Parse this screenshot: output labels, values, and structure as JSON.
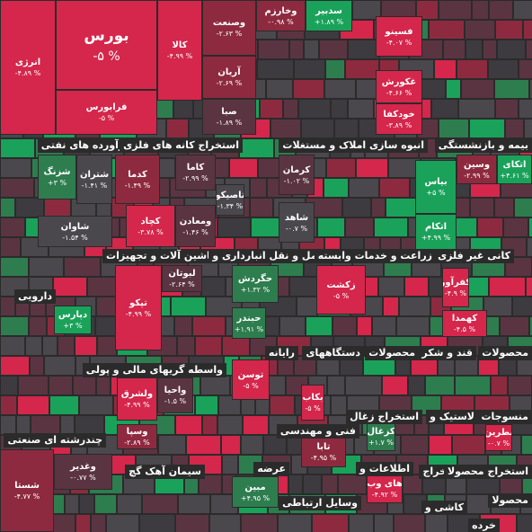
{
  "sectors": [
    "فرآورده های نفتی",
    "استخراج کانه های فلزی",
    "انبوه سازی املاک و مستغلات",
    "بیمه و بازنشستگی",
    "ماشین آلات و تجهیزات",
    "حمل و نقل انبارداری و",
    "زراعت و خدمات وابسته",
    "کانی غیر فلزی",
    "دارویی",
    "رایانه",
    "دستگاههای",
    "محصولات",
    "قند و شکر",
    "محصولات",
    "واسطه گریهای مالی و پولی",
    "فنی و مهندسی",
    "استخراج زغال",
    "لاستیک و",
    "منسوجات",
    "چندرشته ای صنعتی",
    "سیمان آهک گچ",
    "عرضه",
    "اطلاعات و",
    "استخراج",
    "استخراج محصولا",
    "وسایل ارتباطی",
    "کاشی و",
    "محصولا",
    "خرده"
  ],
  "tiles": [
    {
      "name": "بورس",
      "change": "-۵ %"
    },
    {
      "name": "فرابورس",
      "change": "-۵ %"
    },
    {
      "name": "انرژی",
      "change": "-۴.۸۹ %"
    },
    {
      "name": "کالا",
      "change": "-۴.۹۹ %"
    },
    {
      "name": "وصنعت",
      "change": "-۲.۶۳ %"
    },
    {
      "name": "وخارزم",
      "change": "-۰.۹۸ %"
    },
    {
      "name": "سدبیر",
      "change": "+۱.۸۹ %"
    },
    {
      "name": "فسینو",
      "change": "-۴.۰۷ %"
    },
    {
      "name": "آریان",
      "change": "-۲.۶۹ %"
    },
    {
      "name": "صبا",
      "change": "-۱.۸۹ %"
    },
    {
      "name": "غکورش",
      "change": "-۴.۶۶ %"
    },
    {
      "name": "خودکفا",
      "change": "-۳.۸۹ %"
    },
    {
      "name": "بیاس",
      "change": "+۵ %"
    },
    {
      "name": "وسین",
      "change": "-۲.۹۹ %"
    },
    {
      "name": "اتکای",
      "change": "+۴.۶۱ %"
    },
    {
      "name": "اتکام",
      "change": "+۴.۹۹ %"
    },
    {
      "name": "کرمان",
      "change": "-۱.۰۲ %"
    },
    {
      "name": "شاهد",
      "change": "-۰.۷ %"
    },
    {
      "name": "کدما",
      "change": "-۱.۴۹ %"
    },
    {
      "name": "کاما",
      "change": "-۲.۹۹ %"
    },
    {
      "name": "تاصیکو",
      "change": "-۱.۳۴ %"
    },
    {
      "name": "کچاد",
      "change": "-۳.۷۸ %"
    },
    {
      "name": "ومعادن",
      "change": "-۱.۴۶ %"
    },
    {
      "name": "شتران",
      "change": "-۱.۴۱ %"
    },
    {
      "name": "شزنگ",
      "change": "+۳ %"
    },
    {
      "name": "شاوان",
      "change": "-۱.۵۴ %"
    },
    {
      "name": "لبوتان",
      "change": "-۲.۶۴ %"
    },
    {
      "name": "تپکو",
      "change": "-۴.۹۹ %"
    },
    {
      "name": "حگردش",
      "change": "+۱.۳۲ %"
    },
    {
      "name": "حبندر",
      "change": "+۱.۹۱ %"
    },
    {
      "name": "زکشت",
      "change": "-۵ %"
    },
    {
      "name": "کفرآور",
      "change": "-۴.۹ %"
    },
    {
      "name": "کهمدا",
      "change": "-۴.۵ %"
    },
    {
      "name": "دپارس",
      "change": "+۳ %"
    },
    {
      "name": "توسن",
      "change": "-۵ %"
    },
    {
      "name": "ولشرق",
      "change": "-۴.۹۹ %"
    },
    {
      "name": "واحیا",
      "change": "-۱.۵ %"
    },
    {
      "name": "وسپا",
      "change": "-۲.۸۹ %"
    },
    {
      "name": "بکاب",
      "change": "-۵ %"
    },
    {
      "name": "کزغال",
      "change": "+۱.۷ %"
    },
    {
      "name": "تابا",
      "change": "-۴.۹۵ %"
    },
    {
      "name": "های وب",
      "change": "-۴.۹۲ %"
    },
    {
      "name": "نطرین",
      "change": "-۰.۷ %"
    },
    {
      "name": "وغدیر",
      "change": "-۰.۷۷ %"
    },
    {
      "name": "مبین",
      "change": "+۴.۹۵ %"
    },
    {
      "name": "شستا",
      "change": "-۴.۷۷ %"
    }
  ]
}
